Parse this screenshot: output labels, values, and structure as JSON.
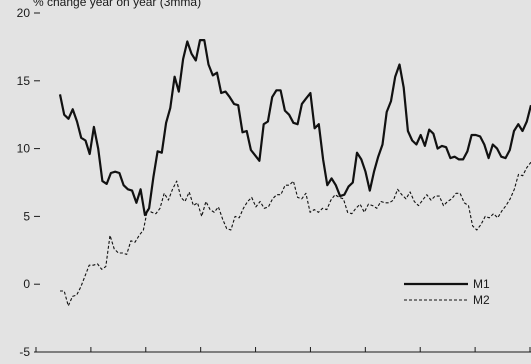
{
  "chart_data": {
    "type": "line",
    "title": "% change year on year (3mma)",
    "xlabel": "",
    "ylabel": "",
    "ylim": [
      -5,
      20
    ],
    "yticks": [
      -5,
      0,
      5,
      10,
      15,
      20
    ],
    "ytick_labels": [
      "-5",
      "0",
      "5",
      "10",
      "15",
      "20"
    ],
    "x_tick_count": 10,
    "grid": false,
    "legend_position": "lower-right",
    "series": [
      {
        "name": "M1",
        "color": "#111111",
        "style": "solid",
        "values": [
          14.0,
          12.5,
          12.2,
          12.9,
          12.0,
          10.8,
          10.6,
          9.6,
          11.6,
          10.0,
          7.6,
          7.4,
          8.2,
          8.3,
          8.2,
          7.3,
          7.0,
          6.9,
          6.0,
          7.0,
          5.1,
          5.6,
          7.9,
          9.8,
          9.7,
          11.9,
          13.0,
          15.3,
          14.2,
          16.6,
          17.9,
          17.0,
          16.5,
          18.0,
          18.0,
          16.2,
          15.4,
          15.6,
          14.1,
          14.2,
          13.8,
          13.3,
          13.2,
          11.2,
          11.3,
          9.9,
          9.5,
          9.1,
          11.8,
          12.0,
          13.8,
          14.3,
          14.3,
          12.8,
          12.5,
          11.9,
          11.8,
          13.3,
          13.7,
          14.1,
          11.5,
          11.8,
          9.2,
          7.3,
          7.8,
          7.3,
          6.5,
          6.6,
          7.2,
          7.5,
          9.7,
          9.2,
          8.3,
          6.9,
          8.3,
          9.4,
          10.3,
          12.7,
          13.5,
          15.3,
          16.2,
          14.5,
          11.3,
          10.6,
          10.3,
          11.0,
          10.2,
          11.4,
          11.1,
          10.0,
          10.2,
          10.1,
          9.3,
          9.4,
          9.2,
          9.2,
          9.8,
          11.0,
          11.0,
          10.9,
          10.3,
          9.3,
          10.3,
          10.0,
          9.4,
          9.3,
          9.9,
          11.3,
          11.8,
          11.3,
          12.0,
          13.2
        ]
      },
      {
        "name": "M2",
        "color": "#111111",
        "style": "dashed",
        "values": [
          -0.5,
          -0.5,
          -1.6,
          -0.9,
          -0.8,
          -0.2,
          0.6,
          1.4,
          1.4,
          1.5,
          1.1,
          1.3,
          3.6,
          2.6,
          2.3,
          2.3,
          2.2,
          3.2,
          3.1,
          3.6,
          4.0,
          5.5,
          5.3,
          5.2,
          5.6,
          6.7,
          6.2,
          7.0,
          7.6,
          6.4,
          6.1,
          6.8,
          5.8,
          6.0,
          5.0,
          6.1,
          5.5,
          5.3,
          5.7,
          4.8,
          4.1,
          4.0,
          5.0,
          4.9,
          5.6,
          6.1,
          6.4,
          5.7,
          6.1,
          5.6,
          5.7,
          6.3,
          6.6,
          6.6,
          7.3,
          7.3,
          7.6,
          6.4,
          6.3,
          6.7,
          5.3,
          5.5,
          5.3,
          5.6,
          5.5,
          6.2,
          6.6,
          6.4,
          6.3,
          5.3,
          5.2,
          5.6,
          5.9,
          5.3,
          5.9,
          5.8,
          5.6,
          6.1,
          6.0,
          6.0,
          6.2,
          7.0,
          6.6,
          6.3,
          6.8,
          6.1,
          5.8,
          6.2,
          6.6,
          6.2,
          6.5,
          6.5,
          5.8,
          6.1,
          6.3,
          6.7,
          6.7,
          6.0,
          5.8,
          4.3,
          4.0,
          4.4,
          5.0,
          4.9,
          5.2,
          4.9,
          5.4,
          5.8,
          6.3,
          7.0,
          8.1,
          8.0,
          8.6,
          9.0
        ]
      }
    ]
  }
}
